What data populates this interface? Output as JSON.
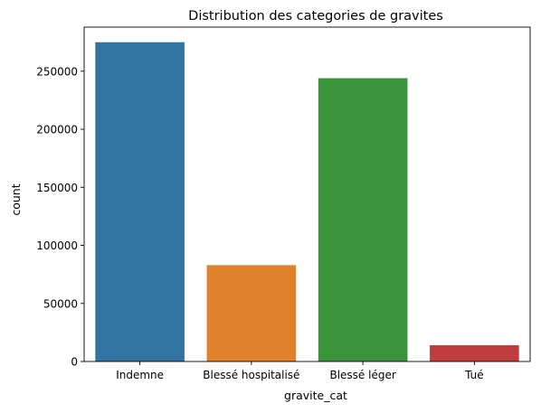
{
  "chart_data": {
    "type": "bar",
    "title": "Distribution des categories de gravites",
    "xlabel": "gravite_cat",
    "ylabel": "count",
    "categories": [
      "Indemne",
      "Blessé hospitalisé",
      "Blessé léger",
      "Tué"
    ],
    "values": [
      275000,
      83000,
      244000,
      14000
    ],
    "colors": [
      "#3274a1",
      "#e1812c",
      "#3a923a",
      "#c03d3e"
    ],
    "ylim": [
      0,
      288000
    ],
    "yticks": [
      0,
      50000,
      100000,
      150000,
      200000,
      250000
    ],
    "grid": false
  }
}
